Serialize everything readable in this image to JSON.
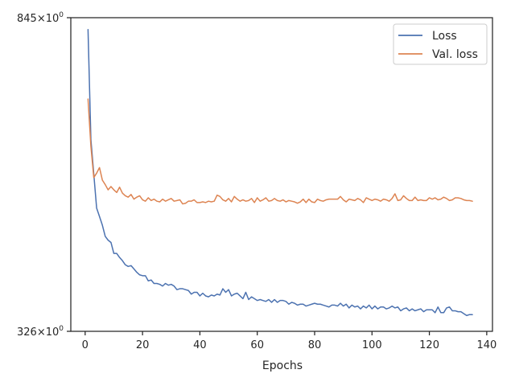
{
  "chart_data": {
    "type": "line",
    "title": "",
    "xlabel": "Epochs",
    "ylabel": "",
    "xlim": [
      -5,
      142
    ],
    "ylim": [
      326,
      845
    ],
    "yscale": "log",
    "grid": false,
    "legend_position": "top-right",
    "x_ticks": [
      0,
      20,
      40,
      60,
      80,
      100,
      120,
      140
    ],
    "x_tick_labels": [
      "0",
      "20",
      "40",
      "60",
      "80",
      "100",
      "120",
      "140"
    ],
    "y_tick_labels": [
      {
        "value": 845,
        "base": "845",
        "times": "×",
        "exp": "10",
        "power": "0"
      },
      {
        "value": 326,
        "base": "326",
        "times": "×",
        "exp": "10",
        "power": "0"
      }
    ],
    "colors": {
      "loss": "#4c72b0",
      "val_loss": "#dd8452",
      "axis": "#262626"
    },
    "x": [
      1,
      2,
      3,
      4,
      5,
      6,
      7,
      8,
      9,
      10,
      11,
      12,
      13,
      14,
      15,
      16,
      17,
      18,
      19,
      20,
      21,
      22,
      23,
      24,
      25,
      26,
      27,
      28,
      29,
      30,
      31,
      32,
      33,
      34,
      35,
      36,
      37,
      38,
      39,
      40,
      41,
      42,
      43,
      44,
      45,
      46,
      47,
      48,
      49,
      50,
      51,
      52,
      53,
      54,
      55,
      56,
      57,
      58,
      59,
      60,
      61,
      62,
      63,
      64,
      65,
      66,
      67,
      68,
      69,
      70,
      71,
      72,
      73,
      74,
      75,
      76,
      77,
      78,
      79,
      80,
      81,
      82,
      83,
      84,
      85,
      86,
      87,
      88,
      89,
      90,
      91,
      92,
      93,
      94,
      95,
      96,
      97,
      98,
      99,
      100,
      101,
      102,
      103,
      104,
      105,
      106,
      107,
      108,
      109,
      110,
      111,
      112,
      113,
      114,
      115,
      116,
      117,
      118,
      119,
      120,
      121,
      122,
      123,
      124,
      125,
      126,
      127,
      128,
      129,
      130,
      131,
      132,
      133,
      134,
      135
    ],
    "series": [
      {
        "name": "Loss",
        "color": "#4c72b0",
        "values": [
          815,
          584,
          526,
          474,
          462,
          450,
          435,
          430,
          427,
          413,
          413,
          408,
          404,
          399,
          397,
          398,
          394,
          390,
          387,
          386,
          386,
          380,
          381,
          377,
          377,
          376,
          374,
          377,
          375,
          376,
          374,
          370,
          371,
          371,
          370,
          369,
          365,
          367,
          367,
          363,
          366,
          363,
          362,
          364,
          363,
          365,
          364,
          371,
          367,
          370,
          363,
          365,
          366,
          363,
          360,
          367,
          359,
          362,
          360,
          358,
          359,
          358,
          357,
          359,
          356,
          359,
          356,
          358,
          358,
          357,
          354,
          356,
          355,
          353,
          354,
          354,
          352,
          353,
          354,
          355,
          354,
          354,
          353,
          352,
          351,
          353,
          353,
          352,
          355,
          352,
          354,
          350,
          353,
          351,
          352,
          349,
          352,
          350,
          353,
          349,
          352,
          349,
          351,
          351,
          349,
          350,
          352,
          350,
          351,
          347,
          349,
          350,
          347,
          349,
          347,
          348,
          349,
          346,
          348,
          348,
          348,
          345,
          351,
          345,
          345,
          350,
          351,
          347,
          347,
          346,
          346,
          344,
          342,
          343,
          343
        ]
      },
      {
        "name": "Val. loss",
        "color": "#dd8452",
        "values": [
          660,
          572,
          520,
          527,
          536,
          516,
          509,
          501,
          506,
          501,
          497,
          505,
          496,
          492,
          490,
          494,
          487,
          490,
          492,
          486,
          484,
          489,
          485,
          487,
          484,
          483,
          487,
          484,
          486,
          488,
          484,
          485,
          486,
          480,
          481,
          484,
          484,
          486,
          482,
          482,
          483,
          482,
          484,
          483,
          484,
          493,
          491,
          486,
          484,
          488,
          483,
          491,
          487,
          484,
          486,
          484,
          485,
          488,
          482,
          489,
          484,
          486,
          489,
          484,
          485,
          488,
          485,
          484,
          486,
          483,
          485,
          484,
          483,
          481,
          483,
          487,
          482,
          487,
          483,
          482,
          487,
          485,
          484,
          486,
          487,
          487,
          487,
          487,
          491,
          486,
          483,
          487,
          486,
          485,
          488,
          486,
          482,
          489,
          487,
          485,
          487,
          486,
          484,
          487,
          486,
          484,
          488,
          495,
          485,
          486,
          492,
          488,
          485,
          485,
          490,
          485,
          486,
          485,
          485,
          489,
          487,
          489,
          486,
          487,
          490,
          488,
          485,
          486,
          489,
          489,
          488,
          486,
          485,
          485,
          484
        ]
      }
    ],
    "legend": [
      {
        "label": "Loss",
        "color": "#4c72b0"
      },
      {
        "label": "Val. loss",
        "color": "#dd8452"
      }
    ]
  }
}
